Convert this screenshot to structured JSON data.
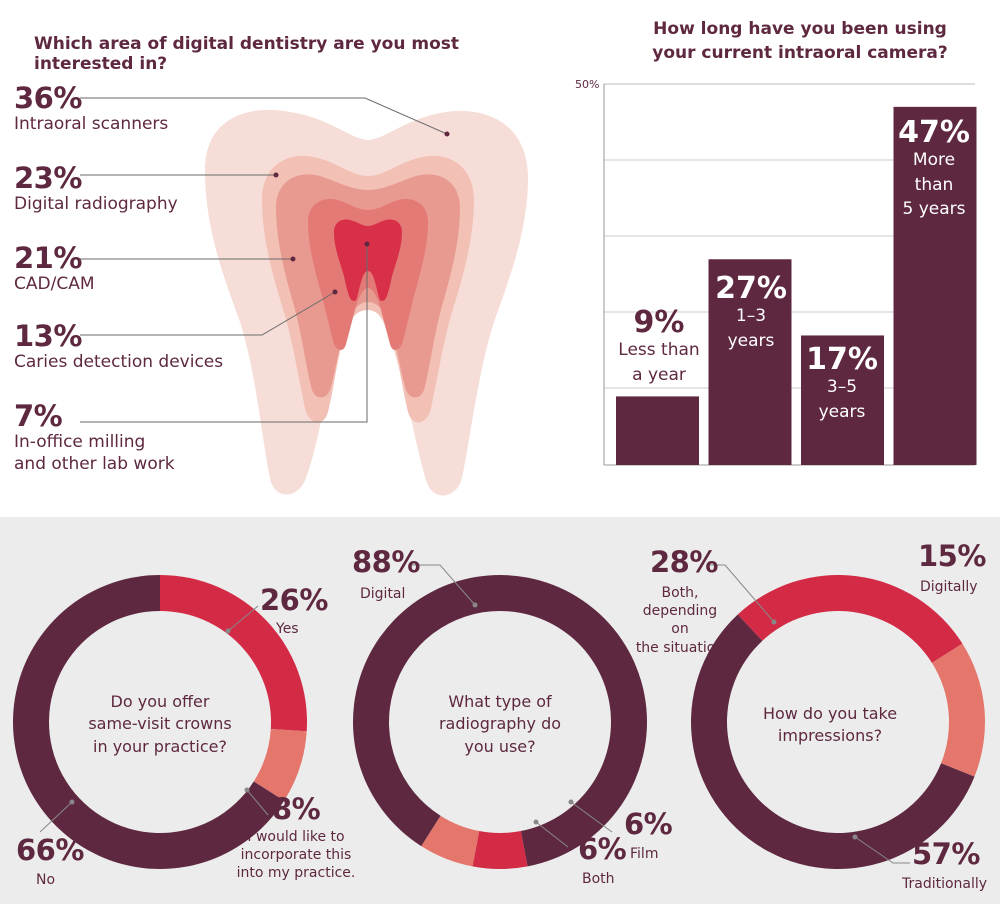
{
  "colors": {
    "maroon": "#5e2840",
    "crimson": "#d32b46",
    "salmon": "#e5766c",
    "tooth_outer": "#f6ddd7",
    "tooth_layer2": "#f2c0b4",
    "tooth_layer3": "#e89a90",
    "tooth_layer4": "#e37a76",
    "tooth_pulp": "#d9304a",
    "panel_bg": "#ececec"
  },
  "interest": {
    "title": "Which area of digital dentistry are you most interested in?",
    "items": [
      {
        "pct": "36%",
        "label": "Intraoral scanners"
      },
      {
        "pct": "23%",
        "label": "Digital radiography"
      },
      {
        "pct": "21%",
        "label": "CAD/CAM"
      },
      {
        "pct": "13%",
        "label": "Caries detection devices"
      },
      {
        "pct": "7%",
        "label_line1": "In-office milling",
        "label_line2": "and other lab work"
      }
    ]
  },
  "camera": {
    "title_line1": "How long have you been using",
    "title_line2": "your current intraoral camera?",
    "axis_label": "50%",
    "bars": [
      {
        "pct": "9%",
        "line1": "Less than",
        "line2": "a year"
      },
      {
        "pct": "27%",
        "line1": "1–3",
        "line2": "years"
      },
      {
        "pct": "17%",
        "line1": "3–5",
        "line2": "years"
      },
      {
        "pct": "47%",
        "line1": "More",
        "line2": "than",
        "line3": "5 years"
      }
    ]
  },
  "crowns": {
    "question_line1": "Do you offer",
    "question_line2": "same-visit crowns",
    "question_line3": "in your practice?",
    "no_pct": "66%",
    "no_label": "No",
    "yes_pct": "26%",
    "yes_label": "Yes",
    "like_pct": "8%",
    "like_line1": "I would like to",
    "like_line2": "incorporate this",
    "like_line3": "into my practice."
  },
  "radiography": {
    "question_line1": "What type of",
    "question_line2": "radiography do",
    "question_line3": "you use?",
    "digital_pct": "88%",
    "digital_label": "Digital",
    "film_pct": "6%",
    "film_label": "Film",
    "both_pct": "6%",
    "both_label": "Both"
  },
  "impressions": {
    "question_line1": "How do you take",
    "question_line2": "impressions?",
    "both_pct": "28%",
    "both_line1": "Both,",
    "both_line2": "depending on",
    "both_line3": "the situation",
    "dig_pct": "15%",
    "dig_label": "Digitally",
    "trad_pct": "57%",
    "trad_label": "Traditionally"
  },
  "chart_data": [
    {
      "type": "bar",
      "title": "How long have you been using your current intraoral camera?",
      "categories": [
        "Less than a year",
        "1–3 years",
        "3–5 years",
        "More than 5 years"
      ],
      "values": [
        9,
        27,
        17,
        47
      ],
      "ylim": [
        0,
        50
      ],
      "grid": true
    },
    {
      "type": "pie",
      "title": "Which area of digital dentistry are you most interested in?",
      "categories": [
        "Intraoral scanners",
        "Digital radiography",
        "CAD/CAM",
        "Caries detection devices",
        "In-office milling and other lab work"
      ],
      "values": [
        36,
        23,
        21,
        13,
        7
      ]
    },
    {
      "type": "pie",
      "title": "Do you offer same-visit crowns in your practice?",
      "categories": [
        "No",
        "Yes",
        "I would like to incorporate this into my practice."
      ],
      "values": [
        66,
        26,
        8
      ]
    },
    {
      "type": "pie",
      "title": "What type of radiography do you use?",
      "categories": [
        "Digital",
        "Film",
        "Both"
      ],
      "values": [
        88,
        6,
        6
      ]
    },
    {
      "type": "pie",
      "title": "How do you take impressions?",
      "categories": [
        "Both, depending on the situation",
        "Digitally",
        "Traditionally"
      ],
      "values": [
        28,
        15,
        57
      ]
    }
  ]
}
